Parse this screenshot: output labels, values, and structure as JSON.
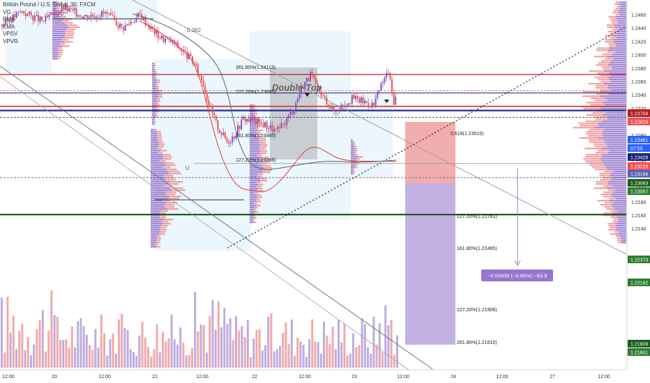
{
  "legend": {
    "title": "British Pound / U.S. Dollar, 30, FXCM",
    "lines": [
      "VG",
      "EMA",
      "EMA",
      "VPSV",
      "VPVR"
    ]
  },
  "chart_data": {
    "type": "candlestick",
    "symbol": "GBP/USD",
    "timeframe": "30",
    "ylim": [
      1.2135,
      1.2475
    ],
    "x_ticks": [
      "12:00",
      "20",
      "12:00",
      "21",
      "12:00",
      "22",
      "12:00",
      "23",
      "12:00",
      "24",
      "12:00",
      "27",
      "12:00"
    ],
    "y_ticks": [
      1.246,
      1.244,
      1.242,
      1.24,
      1.238,
      1.236,
      1.234,
      1.232,
      1.23,
      1.228,
      1.226,
      1.224,
      1.222,
      1.22,
      1.218,
      1.216,
      1.214
    ],
    "price_badges": [
      {
        "value": "1.23704",
        "color": "#b71c1c"
      },
      {
        "value": "1.23629",
        "color": "#ef5350"
      },
      {
        "value": "1.23461",
        "color": "#2962ff"
      },
      {
        "value": "07:55",
        "color": "#2962ff"
      },
      {
        "value": "1.23428",
        "color": "#1a237e"
      },
      {
        "value": "1.23228",
        "color": "#ef5350"
      },
      {
        "value": "1.23166",
        "color": "#5c5fb8"
      },
      {
        "value": "1.23063",
        "color": "#1b5e20"
      },
      {
        "value": "1.23057",
        "color": "#2e7d32"
      },
      {
        "value": "1.22373",
        "color": "#2e7d32"
      },
      {
        "value": "1.22162",
        "color": "#2e7d32"
      },
      {
        "value": "1.21609",
        "color": "#1b5e20"
      },
      {
        "value": "1.21601",
        "color": "#2e7d32"
      }
    ],
    "annotations": {
      "pattern_label": "Double-Top",
      "fib_retracement": "0.382",
      "fib_ext_left": [
        "261.80%(1.24113)",
        "227.20%(1.23895)",
        "161.80%(1.23485)",
        "127.20%(1.23268)"
      ],
      "fib_ext_right": [
        "0.618(1.23515)",
        "127.20%(1.22761)",
        "161.80%(1.22465)",
        "227.20%(1.21906)",
        "261.80%(1.21610)"
      ],
      "measure": "−0.00839 (−0.68%) −83.9",
      "marker_u": "U"
    },
    "colors": {
      "up": "#7e57c2",
      "down": "#ef5350",
      "ema_fast": "#e53935",
      "ema_slow": "#616161"
    }
  }
}
